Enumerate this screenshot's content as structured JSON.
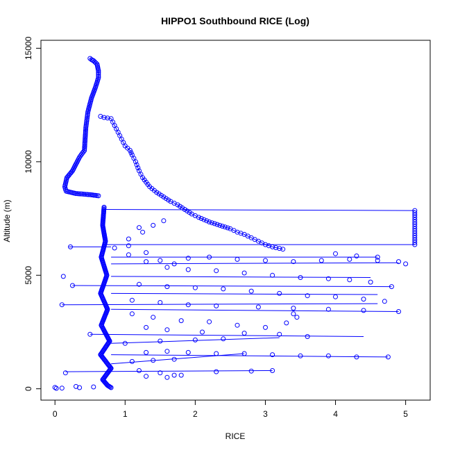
{
  "chart_data": {
    "type": "scatter",
    "title": "HIPPO1 Southbound RICE (Log)",
    "xlabel": "RICE",
    "ylabel": "Altitude (m)",
    "xlim": [
      -0.2,
      5.35
    ],
    "ylim": [
      -500,
      15350
    ],
    "x_ticks": [
      0,
      1,
      2,
      3,
      4,
      5
    ],
    "y_ticks": [
      0,
      5000,
      10000,
      15000
    ],
    "grid": false,
    "legend": "none",
    "marker": "open-circle",
    "connect_points": true,
    "color": "#0000ff",
    "series": [
      {
        "profile_descent": [
          [
            0.5,
            14550
          ],
          [
            0.52,
            14500
          ],
          [
            0.55,
            14450
          ],
          [
            0.6,
            14300
          ],
          [
            0.62,
            14000
          ],
          [
            0.62,
            13700
          ],
          [
            0.58,
            13300
          ],
          [
            0.52,
            12800
          ],
          [
            0.47,
            12200
          ],
          [
            0.44,
            11500
          ],
          [
            0.42,
            10500
          ],
          [
            0.35,
            10200
          ],
          [
            0.25,
            9600
          ],
          [
            0.17,
            9300
          ],
          [
            0.14,
            8900
          ],
          [
            0.16,
            8700
          ],
          [
            0.3,
            8600
          ],
          [
            0.5,
            8550
          ],
          [
            0.62,
            8500
          ]
        ],
        "profile_tail": [
          [
            0.65,
            12000
          ],
          [
            0.7,
            11950
          ],
          [
            0.8,
            11900
          ],
          [
            0.85,
            11600
          ],
          [
            0.9,
            11300
          ],
          [
            0.95,
            11000
          ],
          [
            1.0,
            10700
          ],
          [
            1.07,
            10500
          ],
          [
            1.1,
            10300
          ],
          [
            1.15,
            10000
          ],
          [
            1.2,
            9600
          ],
          [
            1.25,
            9300
          ],
          [
            1.3,
            9100
          ],
          [
            1.35,
            8900
          ],
          [
            1.45,
            8650
          ],
          [
            1.55,
            8450
          ],
          [
            1.65,
            8250
          ],
          [
            1.75,
            8100
          ],
          [
            1.85,
            7900
          ],
          [
            1.95,
            7700
          ],
          [
            2.05,
            7550
          ],
          [
            2.2,
            7350
          ],
          [
            2.35,
            7200
          ],
          [
            2.5,
            7050
          ],
          [
            2.6,
            6900
          ],
          [
            2.7,
            6800
          ],
          [
            2.8,
            6650
          ],
          [
            2.9,
            6500
          ],
          [
            3.0,
            6350
          ],
          [
            3.1,
            6250
          ],
          [
            3.25,
            6150
          ]
        ],
        "cluster_track": [
          [
            0.7,
            8000
          ],
          [
            0.68,
            7200
          ],
          [
            0.72,
            6500
          ],
          [
            0.66,
            5800
          ],
          [
            0.74,
            5000
          ],
          [
            0.65,
            4200
          ],
          [
            0.75,
            3500
          ],
          [
            0.66,
            2800
          ],
          [
            0.78,
            2100
          ],
          [
            0.65,
            1500
          ],
          [
            0.8,
            900
          ],
          [
            0.68,
            400
          ],
          [
            0.75,
            150
          ],
          [
            0.8,
            50
          ]
        ],
        "scatter_points": [
          [
            0.22,
            6250
          ],
          [
            0.12,
            4950
          ],
          [
            0.25,
            4550
          ],
          [
            0.1,
            3700
          ],
          [
            0.5,
            2400
          ],
          [
            0.85,
            6200
          ],
          [
            1.05,
            5900
          ],
          [
            1.3,
            5600
          ],
          [
            1.6,
            5350
          ],
          [
            1.9,
            5250
          ],
          [
            2.3,
            5200
          ],
          [
            2.7,
            5100
          ],
          [
            3.1,
            5000
          ],
          [
            3.5,
            4900
          ],
          [
            3.9,
            4850
          ],
          [
            4.2,
            4800
          ],
          [
            4.5,
            4700
          ],
          [
            4.8,
            4500
          ],
          [
            1.2,
            4600
          ],
          [
            1.6,
            4500
          ],
          [
            2.0,
            4450
          ],
          [
            2.4,
            4400
          ],
          [
            2.8,
            4300
          ],
          [
            3.2,
            4200
          ],
          [
            3.6,
            4100
          ],
          [
            4.0,
            4050
          ],
          [
            4.4,
            3950
          ],
          [
            4.7,
            3850
          ],
          [
            1.1,
            3900
          ],
          [
            1.5,
            3800
          ],
          [
            1.9,
            3700
          ],
          [
            2.3,
            3650
          ],
          [
            2.9,
            3600
          ],
          [
            3.4,
            3550
          ],
          [
            3.9,
            3500
          ],
          [
            4.4,
            3450
          ],
          [
            4.9,
            3400
          ],
          [
            1.1,
            3300
          ],
          [
            1.4,
            3150
          ],
          [
            1.8,
            3000
          ],
          [
            2.2,
            2950
          ],
          [
            2.6,
            2800
          ],
          [
            3.0,
            2700
          ],
          [
            3.3,
            2900
          ],
          [
            3.45,
            3150
          ],
          [
            3.4,
            3300
          ],
          [
            1.3,
            2700
          ],
          [
            1.6,
            2600
          ],
          [
            2.1,
            2500
          ],
          [
            2.7,
            2450
          ],
          [
            3.2,
            2400
          ],
          [
            3.6,
            2300
          ],
          [
            1.0,
            2000
          ],
          [
            1.5,
            2100
          ],
          [
            2.0,
            2150
          ],
          [
            2.4,
            2200
          ],
          [
            1.3,
            1600
          ],
          [
            1.6,
            1650
          ],
          [
            1.9,
            1600
          ],
          [
            2.3,
            1550
          ],
          [
            2.7,
            1550
          ],
          [
            3.1,
            1500
          ],
          [
            3.5,
            1450
          ],
          [
            3.9,
            1450
          ],
          [
            4.3,
            1400
          ],
          [
            4.75,
            1400
          ],
          [
            1.1,
            1200
          ],
          [
            1.4,
            1250
          ],
          [
            1.7,
            1300
          ],
          [
            1.2,
            800
          ],
          [
            1.5,
            700
          ],
          [
            1.8,
            600
          ],
          [
            2.3,
            750
          ],
          [
            2.8,
            780
          ],
          [
            3.1,
            800
          ],
          [
            0.15,
            700
          ],
          [
            1.3,
            550
          ],
          [
            1.6,
            500
          ],
          [
            1.7,
            600
          ],
          [
            0.0,
            60
          ],
          [
            0.02,
            20
          ],
          [
            0.1,
            30
          ],
          [
            0.35,
            50
          ],
          [
            0.3,
            100
          ],
          [
            0.55,
            80
          ],
          [
            1.05,
            6600
          ],
          [
            1.25,
            6900
          ],
          [
            1.4,
            7200
          ],
          [
            1.55,
            7400
          ],
          [
            1.2,
            7100
          ],
          [
            1.05,
            6300
          ],
          [
            1.3,
            6000
          ],
          [
            1.5,
            5650
          ],
          [
            1.7,
            5500
          ],
          [
            1.9,
            5750
          ],
          [
            2.2,
            5800
          ],
          [
            2.6,
            5700
          ],
          [
            3.0,
            5650
          ],
          [
            3.4,
            5600
          ],
          [
            3.8,
            5650
          ],
          [
            4.2,
            5700
          ],
          [
            4.6,
            5650
          ],
          [
            4.9,
            5600
          ],
          [
            5.0,
            5500
          ],
          [
            4.6,
            5800
          ],
          [
            4.3,
            5850
          ],
          [
            4.0,
            5950
          ]
        ],
        "right_column": [
          [
            5.13,
            7850
          ],
          [
            5.13,
            7750
          ],
          [
            5.13,
            7650
          ],
          [
            5.13,
            7550
          ],
          [
            5.13,
            7450
          ],
          [
            5.13,
            7350
          ],
          [
            5.13,
            7250
          ],
          [
            5.13,
            7150
          ],
          [
            5.13,
            7050
          ],
          [
            5.13,
            6950
          ],
          [
            5.13,
            6850
          ],
          [
            5.13,
            6750
          ],
          [
            5.13,
            6650
          ],
          [
            5.13,
            6550
          ],
          [
            5.13,
            6450
          ],
          [
            5.13,
            6350
          ]
        ],
        "horizontal_segments": [
          [
            [
              0.7,
              7900
            ],
            [
              5.13,
              7850
            ]
          ],
          [
            [
              0.7,
              6350
            ],
            [
              5.13,
              6350
            ]
          ],
          [
            [
              0.2,
              6250
            ],
            [
              0.8,
              6250
            ]
          ],
          [
            [
              0.8,
              5800
            ],
            [
              4.6,
              5800
            ]
          ],
          [
            [
              0.8,
              5500
            ],
            [
              4.9,
              5550
            ]
          ],
          [
            [
              0.8,
              4950
            ],
            [
              4.5,
              4900
            ]
          ],
          [
            [
              0.25,
              4550
            ],
            [
              4.8,
              4500
            ]
          ],
          [
            [
              0.8,
              4200
            ],
            [
              4.6,
              4150
            ]
          ],
          [
            [
              0.1,
              3700
            ],
            [
              4.6,
              3750
            ]
          ],
          [
            [
              0.8,
              3500
            ],
            [
              4.9,
              3400
            ]
          ],
          [
            [
              0.5,
              2400
            ],
            [
              4.4,
              2300
            ]
          ],
          [
            [
              0.8,
              1500
            ],
            [
              4.75,
              1400
            ]
          ],
          [
            [
              0.15,
              750
            ],
            [
              3.1,
              800
            ]
          ],
          [
            [
              0.8,
              2000
            ],
            [
              3.2,
              2250
            ]
          ],
          [
            [
              0.8,
              1100
            ],
            [
              2.7,
              1550
            ]
          ]
        ]
      }
    ]
  }
}
